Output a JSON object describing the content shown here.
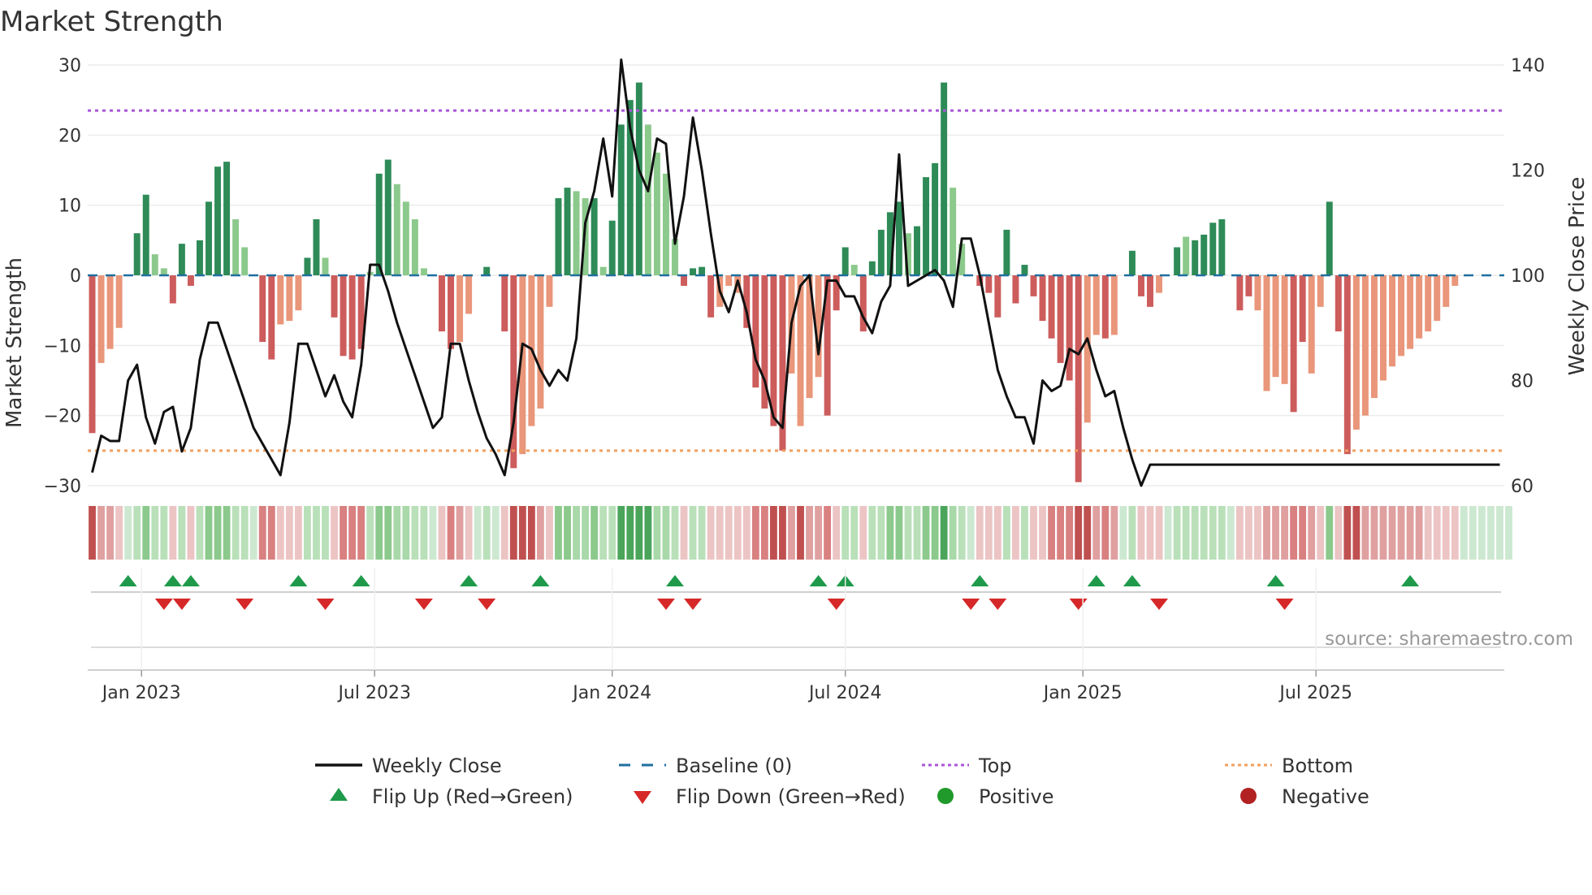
{
  "chart_data": {
    "type": "bar",
    "title": "Market Strength",
    "ylabel": "Market Strength",
    "y2label": "Weekly Close Price",
    "ylim": [
      -30,
      30
    ],
    "y2lim": [
      60,
      140
    ],
    "yticks": [
      30,
      20,
      10,
      0,
      -10,
      -20,
      -30
    ],
    "y2ticks": [
      140,
      120,
      100,
      80,
      60
    ],
    "ytick_labels": [
      "30",
      "20",
      "10",
      "0",
      "−10",
      "−20",
      "−30"
    ],
    "y2tick_labels": [
      "140",
      "120",
      "100",
      "80",
      "60"
    ],
    "x_start": "2022-11-21",
    "week_count": 158,
    "xticks": [
      {
        "label": "Jan 2023",
        "week": 6
      },
      {
        "label": "Jul 2023",
        "week": 32
      },
      {
        "label": "Jan 2024",
        "week": 58.5
      },
      {
        "label": "Jul 2024",
        "week": 84.5
      },
      {
        "label": "Jan 2025",
        "week": 111
      },
      {
        "label": "Jul 2025",
        "week": 137
      }
    ],
    "top_level": 23.5,
    "bottom_level": -25,
    "baseline": 0,
    "strength": [
      -22.5,
      -12.5,
      -10.5,
      -7.5,
      0,
      6,
      11.5,
      3,
      1,
      -4,
      4.5,
      -1.5,
      5,
      10.5,
      15.5,
      16.2,
      8,
      4,
      0,
      -9.5,
      -12,
      -7,
      -6.5,
      -5,
      2.5,
      8,
      2.5,
      -6,
      -11.5,
      -12,
      -10.5,
      0.5,
      14.5,
      16.5,
      13,
      10.5,
      8,
      1,
      0,
      -8,
      -10.5,
      -9.5,
      -5.5,
      0,
      1.2,
      0,
      -8,
      -27.5,
      -25.5,
      -21.5,
      -19,
      -4.5,
      11,
      12.5,
      12,
      11,
      11,
      1.2,
      7.8,
      21.5,
      25,
      27.5,
      21.5,
      17.5,
      14.5,
      5.2,
      -1.5,
      1,
      1.2,
      -6,
      -4.5,
      -1.5,
      -2.5,
      -7.5,
      -16,
      -19,
      -21.5,
      -25,
      -14,
      -21.5,
      -17.5,
      -14.5,
      -20,
      -5,
      4,
      1.5,
      -8,
      2,
      6.5,
      9,
      10.5,
      6,
      7,
      14,
      16,
      27.5,
      12.5,
      4.5,
      0,
      -1.5,
      -2.5,
      -6,
      6.5,
      -4,
      1.5,
      -3,
      -6.5,
      -9,
      -12.5,
      -15,
      -29.5,
      -21,
      -8.5,
      -9,
      -8.5,
      0,
      3.5,
      -3,
      -4.5,
      -2.5,
      0,
      4,
      5.5,
      5,
      5.8,
      7.5,
      8,
      0,
      -5,
      -3,
      -5,
      -16.5,
      -14.5,
      -15.5,
      -19.5,
      -9.5,
      -14,
      -4.5,
      10.5,
      -8,
      -25.5,
      -22,
      -20,
      -17.5,
      -15,
      -13,
      -11.5,
      -10.5,
      -9,
      -8,
      -6.5,
      -4.5,
      -1.5,
      0,
      0,
      0,
      0,
      0,
      0
    ],
    "strength_shade": [
      0,
      1,
      1,
      1,
      0,
      0,
      0,
      1,
      1,
      0,
      0,
      0,
      0,
      0,
      0,
      0,
      1,
      1,
      0,
      0,
      0,
      1,
      1,
      1,
      0,
      0,
      1,
      0,
      0,
      0,
      0,
      1,
      0,
      0,
      1,
      1,
      1,
      1,
      0,
      0,
      0,
      1,
      1,
      0,
      0,
      0,
      0,
      0,
      1,
      1,
      1,
      1,
      0,
      0,
      1,
      1,
      0,
      1,
      0,
      0,
      0,
      0,
      1,
      1,
      1,
      1,
      0,
      0,
      0,
      0,
      1,
      1,
      1,
      0,
      0,
      0,
      0,
      0,
      1,
      1,
      1,
      1,
      0,
      0,
      0,
      1,
      0,
      0,
      0,
      0,
      0,
      1,
      0,
      0,
      0,
      0,
      1,
      1,
      0,
      0,
      0,
      0,
      0,
      0,
      0,
      0,
      0,
      0,
      0,
      0,
      0,
      1,
      1,
      0,
      1,
      0,
      0,
      0,
      0,
      1,
      0,
      0,
      1,
      0,
      0,
      0,
      0,
      0,
      0,
      0,
      1,
      1,
      1,
      1,
      0,
      0,
      1,
      1,
      0,
      0,
      0,
      1,
      1,
      1,
      1,
      1,
      1,
      1,
      1,
      1,
      1,
      1,
      1,
      1,
      1,
      1,
      1,
      1
    ],
    "close": [
      62.5,
      69.5,
      68.5,
      68.5,
      80,
      83,
      73,
      68,
      74,
      75,
      66.5,
      71,
      84,
      91,
      91,
      86,
      81,
      76,
      71,
      68,
      65,
      62,
      72,
      87,
      87,
      82,
      77,
      81,
      76,
      73,
      83,
      102,
      102,
      97,
      91,
      86,
      81,
      76,
      71,
      73,
      87,
      87,
      80,
      74,
      69,
      66,
      62,
      72,
      87,
      86,
      82,
      79,
      82,
      80,
      88,
      110,
      116,
      126,
      115,
      141,
      128,
      120,
      116,
      126,
      125,
      106,
      115,
      130,
      120,
      108,
      97,
      93,
      99,
      93,
      84,
      80,
      73,
      71,
      91,
      98,
      100,
      85,
      99,
      99,
      96,
      96,
      92,
      89,
      95,
      98,
      123,
      98,
      99,
      100,
      101,
      99,
      94,
      107,
      107,
      100,
      91,
      82,
      77,
      73,
      73,
      68,
      80,
      78,
      79,
      86,
      85,
      88,
      82,
      77,
      78,
      71,
      65,
      60,
      64,
      64,
      64,
      64,
      64,
      64,
      64,
      64,
      64,
      64,
      64,
      64,
      64,
      64,
      64,
      64,
      64,
      64,
      64,
      64,
      64,
      64,
      64,
      64,
      64,
      64,
      64,
      64,
      64,
      64,
      64,
      64,
      64,
      64,
      64,
      64,
      64,
      64,
      64,
      64
    ],
    "heat_level": [
      0,
      1,
      1,
      1,
      0,
      0,
      0,
      1,
      1,
      0,
      0,
      0,
      0,
      0,
      0,
      0,
      1,
      1,
      0,
      0,
      0,
      1,
      1,
      1,
      0,
      0,
      1,
      0,
      0,
      0,
      0,
      1,
      0,
      0,
      1,
      1,
      1,
      1,
      0,
      0,
      0,
      1,
      1,
      0,
      0,
      0,
      0,
      0,
      1,
      1,
      1,
      1,
      0,
      0,
      1,
      1,
      0,
      1,
      0,
      0,
      0,
      0,
      1,
      1,
      1,
      1,
      0,
      0,
      0,
      0,
      1,
      1,
      1,
      0,
      0,
      0,
      0,
      0,
      1,
      1,
      1,
      1,
      0,
      0,
      0,
      1,
      0,
      0,
      0,
      0,
      0,
      1,
      0,
      0,
      0,
      0,
      1,
      1,
      0,
      0,
      0,
      0,
      0,
      0,
      0,
      0,
      0,
      0,
      0,
      0,
      0,
      1,
      1,
      0,
      1,
      0,
      0,
      0,
      0,
      1,
      0,
      0,
      1,
      0,
      0,
      0,
      0,
      0,
      0,
      0,
      1,
      1,
      1,
      1,
      0,
      0,
      1,
      1,
      0,
      0,
      0,
      1,
      1,
      1,
      1,
      1,
      1,
      1,
      1,
      1,
      1,
      1,
      1,
      1,
      1,
      1,
      1,
      1
    ],
    "flip_up_weeks": [
      4,
      9,
      11,
      23,
      30,
      42,
      50,
      65,
      81,
      84,
      99,
      112,
      116,
      132,
      147
    ],
    "flip_down_weeks": [
      8,
      10,
      17,
      26,
      37,
      44,
      64,
      67,
      83,
      98,
      101,
      110,
      119,
      133
    ],
    "legend": [
      {
        "label": "Weekly Close",
        "symbol": "line",
        "color": "#111111"
      },
      {
        "label": "Baseline (0)",
        "symbol": "dash",
        "color": "#1f6f9f"
      },
      {
        "label": "Top",
        "symbol": "dot",
        "color": "#a855d8"
      },
      {
        "label": "Bottom",
        "symbol": "dot",
        "color": "#f0a060"
      },
      {
        "label": "Flip Up (Red→Green)",
        "symbol": "tri-up",
        "color": "#1f9a4b"
      },
      {
        "label": "Flip Down (Green→Red)",
        "symbol": "tri-down",
        "color": "#d62828"
      },
      {
        "label": "Positive",
        "symbol": "circle",
        "color": "#1f9a2b"
      },
      {
        "label": "Negative",
        "symbol": "circle",
        "color": "#b22222"
      }
    ],
    "source": "source: sharemaestro.com",
    "colors": {
      "pos_dark": "#2e8b57",
      "pos_light": "#8cc98c",
      "neg_dark": "#cd5c5c",
      "neg_light": "#e9967a",
      "baseline": "#1f6f9f",
      "top": "#a855d8",
      "bottom": "#f0a060",
      "close": "#111111",
      "grid": "#ececec",
      "flip_up": "#1f9a4b",
      "flip_down": "#d62828"
    }
  }
}
